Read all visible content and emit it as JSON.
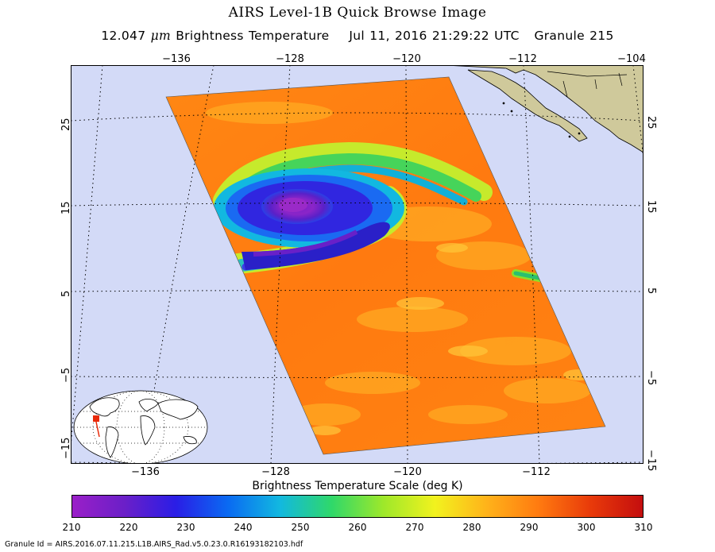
{
  "title": "AIRS Level-1B Quick Browse Image",
  "subtitle": {
    "prefix": "12.047",
    "mu": "μm",
    "rest": "Brightness Temperature    Jul 11, 2016 21:29:22 UTC   Granule 215"
  },
  "map": {
    "top_longitude_labels": [
      "−136",
      "−128",
      "−120",
      "−112",
      "−104"
    ],
    "bottom_longitude_labels": [
      "−136",
      "−128",
      "−120",
      "−112"
    ],
    "left_latitude_labels": [
      "25",
      "15",
      "5",
      "−5",
      "−15"
    ],
    "right_latitude_labels": [
      "25",
      "15",
      "5",
      "−5",
      "−15"
    ],
    "gridlines": "dotted",
    "ocean_color": "#d3daf7",
    "land_color": "#cfc99b",
    "inset": "world-map-locator"
  },
  "scale": {
    "title": "Brightness Temperature Scale (deg K)",
    "ticks": [
      "210",
      "220",
      "230",
      "240",
      "250",
      "260",
      "270",
      "280",
      "290",
      "300",
      "310"
    ],
    "range": [
      210,
      310
    ],
    "colors": [
      "#9a1fc8",
      "#6b1fc8",
      "#2a1ee6",
      "#0a6af2",
      "#12b8e0",
      "#2fd86a",
      "#9ee82a",
      "#f2f21e",
      "#ffb21a",
      "#ff7a10",
      "#e83a0a",
      "#c40e0e"
    ]
  },
  "granule_id": "Granule Id = AIRS.2016.07.11.215.L1B.AIRS_Rad.v5.0.23.0.R16193182103.hdf"
}
